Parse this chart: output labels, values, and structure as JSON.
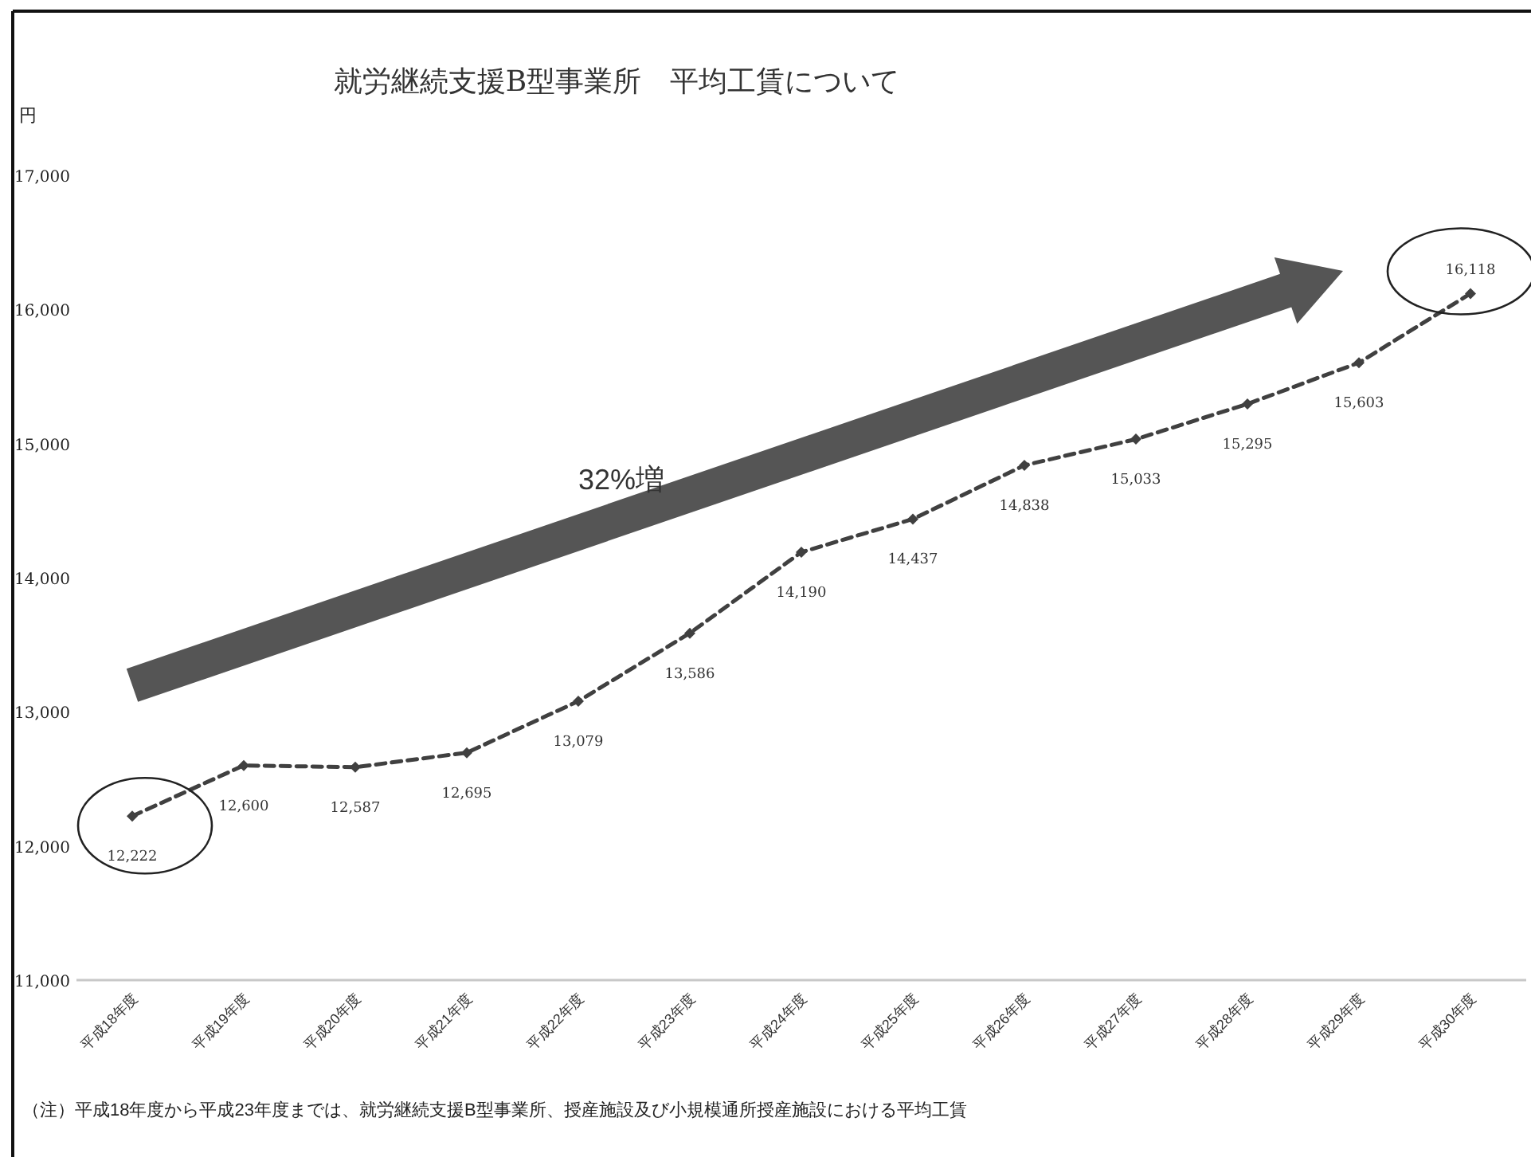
{
  "chart_data": {
    "type": "line",
    "title": "就労継続支援B型事業所　平均工賃について",
    "ylabel": "円",
    "categories": [
      "平成18年度",
      "平成19年度",
      "平成20年度",
      "平成21年度",
      "平成22年度",
      "平成23年度",
      "平成24年度",
      "平成25年度",
      "平成26年度",
      "平成27年度",
      "平成28年度",
      "平成29年度",
      "平成30年度"
    ],
    "series": [
      {
        "color": "#404040",
        "values": [
          12222,
          12600,
          12587,
          12695,
          13079,
          13586,
          14190,
          14437,
          14838,
          15033,
          15295,
          15603,
          16118
        ],
        "value_labels": [
          "12,222",
          "12,600",
          "12,587",
          "12,695",
          "13,079",
          "13,586",
          "14,190",
          "14,437",
          "14,838",
          "15,033",
          "15,295",
          "15,603",
          "16,118"
        ]
      }
    ],
    "ylim": [
      11000,
      17000
    ],
    "yticks": [
      {
        "value": 11000,
        "label": "11,000"
      },
      {
        "value": 12000,
        "label": "12,000"
      },
      {
        "value": 13000,
        "label": "13,000"
      },
      {
        "value": 14000,
        "label": "14,000"
      },
      {
        "value": 15000,
        "label": "15,000"
      },
      {
        "value": 16000,
        "label": "16,000"
      },
      {
        "value": 17000,
        "label": "17,000"
      }
    ],
    "marker": "diamond",
    "line_style": "dashed",
    "grid": false,
    "annotations": [
      "32%増",
      "（注）平成18年度から平成23年度までは、就労継続支援B型事業所、授産施設及び小規模通所授産施設における平均工賃"
    ]
  }
}
